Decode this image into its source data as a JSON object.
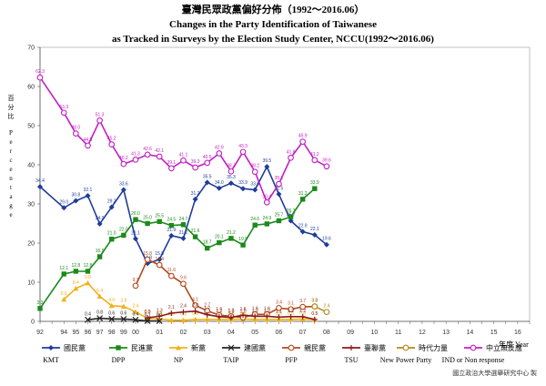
{
  "chart_data": {
    "type": "line",
    "title": "臺灣民眾政黨偏好分佈（1992～2016.06）",
    "subtitle_line1": "Changes in the Party Identification of Taiwanese",
    "subtitle_line2": "as Tracked in Surveys by the Election Study Center, NCCU(1992～2016.06)",
    "ylabel_zh": "百分比",
    "ylabel_en": "Percentage",
    "xlabel": "年度 Year",
    "ylim": [
      0,
      70
    ],
    "yticks": [
      "0",
      "10",
      "20",
      "30",
      "40",
      "50",
      "60",
      "70"
    ],
    "grid": false,
    "legend_position": "bottom",
    "x": [
      "92",
      "",
      "94",
      "95",
      "96",
      "97",
      "98",
      "99",
      "00",
      "",
      "01",
      "",
      "02",
      "",
      "03",
      "",
      "04",
      "",
      "05",
      "",
      "06",
      "",
      "07",
      "",
      "08",
      "",
      "09",
      "",
      "10",
      "",
      "11",
      "",
      "12",
      "",
      "13",
      "",
      "14",
      "",
      "15",
      "",
      "16",
      ""
    ],
    "x_ticks_shown": [
      "92",
      "94",
      "95",
      "96",
      "97",
      "98",
      "99",
      "00",
      "01",
      "02",
      "03",
      "04",
      "05",
      "06",
      "07",
      "08",
      "09",
      "10",
      "11",
      "12",
      "13",
      "14",
      "15",
      "16"
    ],
    "series": [
      {
        "name": "國民黨",
        "name_en": "KMT",
        "color": "#1f3c99",
        "marker": "diamond",
        "x": [
          0,
          2,
          3,
          4,
          5,
          6,
          7,
          8,
          9,
          10,
          11,
          12,
          13,
          14,
          15,
          16,
          17,
          18,
          19,
          20,
          21,
          22,
          23,
          24,
          25,
          26,
          27,
          28,
          29,
          30
        ],
        "values": [
          34.4,
          29.0,
          30.8,
          32.1,
          24.9,
          29.2,
          33.6,
          21.1,
          14.8,
          15.8,
          21.9,
          21.2,
          31.2,
          35.5,
          34.0,
          35.3,
          33.9,
          33.6,
          39.5,
          32.5,
          25.7,
          22.9,
          22.1,
          19.6,
          null,
          null,
          null,
          null,
          null,
          null
        ]
      },
      {
        "name": "民進黨",
        "name_en": "DPP",
        "color": "#1a8a1a",
        "marker": "square",
        "x": [
          0,
          2,
          3,
          4,
          5,
          6,
          7,
          8,
          9,
          10,
          11,
          12,
          13,
          14,
          15,
          16,
          17,
          18,
          19,
          20,
          21,
          22,
          23,
          24
        ],
        "values": [
          3.3,
          12.1,
          12.8,
          12.8,
          16.5,
          21.0,
          22.0,
          26.0,
          25.0,
          25.5,
          24.5,
          24.7,
          21.6,
          18.7,
          20.1,
          21.2,
          19.5,
          24.6,
          24.9,
          25.7,
          26.7,
          31.2,
          33.9,
          null
        ]
      },
      {
        "name": "新黨",
        "name_en": "NP",
        "color": "#f0b21a",
        "marker": "triangle",
        "x": [
          2,
          3,
          4,
          5,
          6,
          7,
          8,
          9,
          10,
          11,
          12,
          13,
          14,
          15,
          16,
          17,
          18,
          19,
          20,
          21,
          22,
          23,
          24
        ],
        "values": [
          5.6,
          8.4,
          9.8,
          6.4,
          4.0,
          3.8,
          2.4,
          0.8,
          0.6,
          0.3,
          0.3,
          0.5,
          0.5,
          0.5,
          0.5,
          0.6,
          0.5,
          0.5,
          0.5,
          0.5,
          0.6,
          0.5,
          null
        ]
      },
      {
        "name": "建國黨",
        "name_en": "TAIP",
        "color": "#222222",
        "marker": "x",
        "x": [
          4,
          5,
          6,
          7,
          8,
          9,
          10
        ],
        "values": [
          0.4,
          0.8,
          0.6,
          0.6,
          0.4,
          0.1,
          0.1
        ]
      },
      {
        "name": "親民黨",
        "name_en": "PFP",
        "color": "#b04a1c",
        "marker": "circle",
        "x": [
          8,
          9,
          10,
          11,
          12,
          13,
          14,
          15,
          16,
          17,
          18,
          19,
          20,
          21,
          22,
          23,
          24
        ],
        "values": [
          9.1,
          15.8,
          14.4,
          11.6,
          9.6,
          4.1,
          2.7,
          1.6,
          1.3,
          1.0,
          1.8,
          1.8,
          3.4,
          3.1,
          3.7,
          3.8,
          null
        ]
      },
      {
        "name": "臺聯黨",
        "name_en": "TSU",
        "color": "#8b1a1a",
        "marker": "plus",
        "x": [
          9,
          10,
          11,
          12,
          13,
          14,
          15,
          16,
          17,
          18,
          19,
          20,
          21,
          22,
          23
        ],
        "values": [
          0.9,
          1.3,
          2.1,
          2.4,
          2.6,
          1.7,
          1.2,
          1.0,
          1.6,
          1.3,
          1.3,
          1.1,
          1.2,
          1.2,
          0.5
        ]
      },
      {
        "name": "時代力量",
        "name_en": "New Power Party",
        "color": "#b08a1a",
        "marker": "circle",
        "x": [
          23,
          24
        ],
        "values": [
          3.8,
          2.4
        ]
      },
      {
        "name": "中立無反應",
        "name_en": "IND or Non response",
        "color": "#c21ec2",
        "marker": "circle",
        "x": [
          0,
          2,
          3,
          4,
          5,
          6,
          7,
          8,
          9,
          10,
          11,
          12,
          13,
          14,
          15,
          16,
          17,
          18,
          19,
          20,
          21,
          22,
          23,
          24
        ],
        "values": [
          62.3,
          53.3,
          48.0,
          44.9,
          51.3,
          45.2,
          40.2,
          41.3,
          42.6,
          42.1,
          39.1,
          41.1,
          39.3,
          40.5,
          42.9,
          38.3,
          43.3,
          38.2,
          30.4,
          35.1,
          41.8,
          45.9,
          41.2,
          39.6
        ]
      }
    ]
  },
  "source": "國立政治大學選舉研究中心 製"
}
